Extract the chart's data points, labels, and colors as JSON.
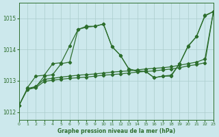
{
  "title": "Graphe pression niveau de la mer (hPa)",
  "background_color": "#cce8ec",
  "grid_color": "#aacccc",
  "line_color": "#2d6e2d",
  "xlim": [
    0,
    23
  ],
  "ylim": [
    1011.75,
    1015.5
  ],
  "yticks": [
    1012,
    1013,
    1014,
    1015
  ],
  "xticks": [
    0,
    1,
    2,
    3,
    4,
    5,
    6,
    7,
    8,
    9,
    10,
    11,
    12,
    13,
    14,
    15,
    16,
    17,
    18,
    19,
    20,
    21,
    22,
    23
  ],
  "curves": {
    "c1_x": [
      0,
      1,
      2,
      3,
      4,
      5,
      6,
      7,
      8,
      9,
      10,
      11,
      12,
      13,
      14,
      15,
      16,
      17,
      18,
      19,
      20,
      21,
      22,
      23
    ],
    "c1_y": [
      1012.2,
      1012.75,
      1012.8,
      1013.15,
      1013.2,
      1013.55,
      1013.6,
      1014.65,
      1014.75,
      1014.75,
      1014.82,
      1014.1,
      1013.82,
      1013.38,
      1013.3,
      1013.3,
      1013.1,
      1013.15,
      1013.15,
      1013.55,
      1014.1,
      1014.42,
      1015.1,
      1015.22
    ],
    "c2_x": [
      1,
      2,
      3,
      4,
      5,
      6,
      7,
      8,
      9,
      10,
      11,
      12,
      13,
      14,
      15,
      16,
      17,
      18,
      19,
      20,
      21,
      22,
      23
    ],
    "c2_y": [
      1012.78,
      1013.15,
      1013.18,
      1013.55,
      1013.58,
      1014.12,
      1014.65,
      1014.72,
      1014.75,
      1014.82,
      1014.1,
      1013.82,
      1013.38,
      1013.32,
      1013.3,
      1013.1,
      1013.15,
      1013.18,
      1013.55,
      1014.12,
      1014.42,
      1015.08,
      1015.22
    ],
    "c3_x": [
      0,
      1,
      2,
      3,
      4,
      5,
      6,
      7,
      8,
      9,
      10,
      11,
      12,
      13,
      14,
      15,
      16,
      17,
      18,
      19,
      20,
      21,
      22,
      23
    ],
    "c3_y": [
      1012.2,
      1012.75,
      1012.82,
      1013.05,
      1013.08,
      1013.12,
      1013.15,
      1013.18,
      1013.2,
      1013.22,
      1013.25,
      1013.28,
      1013.3,
      1013.32,
      1013.35,
      1013.38,
      1013.4,
      1013.42,
      1013.45,
      1013.5,
      1013.55,
      1013.6,
      1013.7,
      1015.22
    ],
    "c4_x": [
      0,
      1,
      2,
      3,
      4,
      5,
      6,
      7,
      8,
      9,
      10,
      11,
      12,
      13,
      14,
      15,
      16,
      17,
      18,
      19,
      20,
      21,
      22,
      23
    ],
    "c4_y": [
      1012.2,
      1012.72,
      1012.78,
      1012.98,
      1013.02,
      1013.05,
      1013.08,
      1013.1,
      1013.12,
      1013.15,
      1013.18,
      1013.2,
      1013.22,
      1013.25,
      1013.28,
      1013.3,
      1013.32,
      1013.35,
      1013.38,
      1013.42,
      1013.48,
      1013.52,
      1013.58,
      1015.22
    ]
  }
}
